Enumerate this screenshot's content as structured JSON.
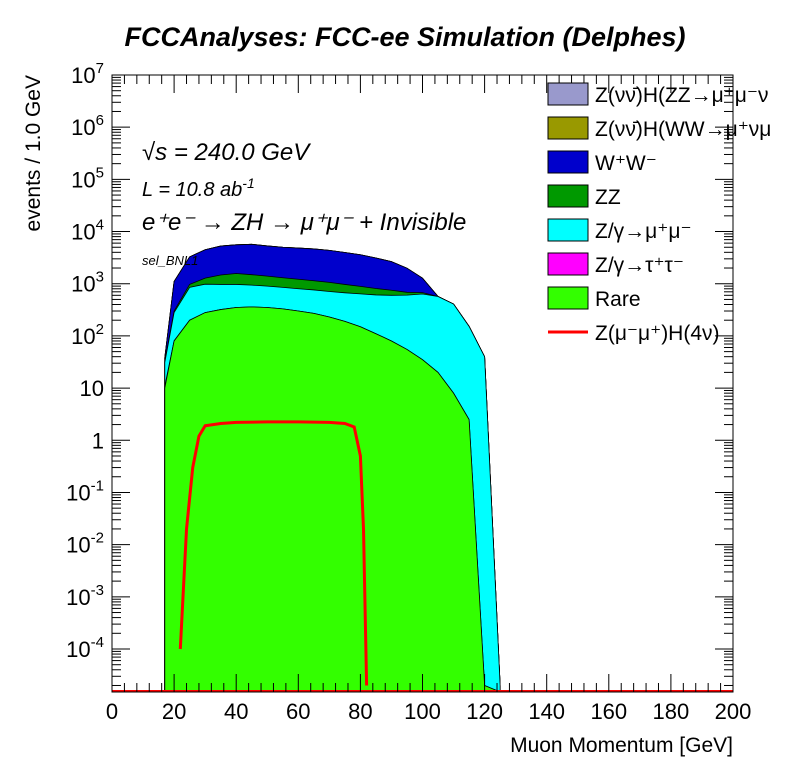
{
  "chart_data": {
    "type": "area",
    "title": "FCCAnalyses: FCC-ee Simulation (Delphes)",
    "xlabel": "Muon Momentum [GeV]",
    "ylabel": "events / 1.0 GeV",
    "xlim": [
      0,
      200
    ],
    "ylim": [
      1.5e-05,
      10000000.0
    ],
    "yscale": "log",
    "x_ticks": [
      "0",
      "20",
      "40",
      "60",
      "80",
      "100",
      "120",
      "140",
      "160",
      "180",
      "200"
    ],
    "grid": false,
    "legend_position": "top-right",
    "annotations": {
      "sqrt_s": "√s = 240.0 GeV",
      "lumi": "L = 10.8 ab",
      "lumi_exp": "-1",
      "process": "e⁺e⁻ → ZH → μ⁺μ⁻ + Invisible",
      "selection": "sel_BNL1"
    },
    "x": [
      17,
      20,
      25,
      30,
      35,
      40,
      45,
      50,
      55,
      60,
      65,
      70,
      75,
      80,
      85,
      90,
      95,
      100,
      105,
      110,
      115,
      120,
      125
    ],
    "stack_order": "bottom-to-top",
    "series": [
      {
        "name": "Rare",
        "color": "#33ff00",
        "values": [
          10,
          80,
          200,
          280,
          320,
          350,
          360,
          350,
          330,
          300,
          270,
          230,
          190,
          150,
          110,
          80,
          55,
          35,
          20,
          8,
          2.5,
          2e-05,
          0
        ]
      },
      {
        "name": "Z/γ→τ⁺τ⁻",
        "color": "#ff00ff",
        "values": [
          1,
          0.5,
          0.2,
          0.1,
          0.05,
          0.02,
          0.01,
          0.005,
          0.002,
          0.001,
          0.0005,
          0.0002,
          0.0001,
          0,
          0,
          0,
          0,
          0,
          0,
          0,
          0,
          0,
          0
        ]
      },
      {
        "name": "Z/γ→μ⁺μ⁻",
        "color": "#00ffff",
        "values": [
          20,
          200,
          650,
          700,
          650,
          620,
          580,
          550,
          520,
          500,
          490,
          480,
          480,
          490,
          500,
          520,
          550,
          600,
          550,
          400,
          150,
          40,
          2e-05
        ]
      },
      {
        "name": "ZZ",
        "color": "#009900",
        "values": [
          2,
          20,
          120,
          300,
          500,
          600,
          550,
          500,
          450,
          420,
          380,
          350,
          300,
          250,
          200,
          150,
          80,
          40,
          0,
          0,
          0,
          0,
          0
        ]
      },
      {
        "name": "W⁺W⁻",
        "color": "#0000cc",
        "values": [
          5,
          800,
          2300,
          3200,
          3800,
          4000,
          4200,
          3900,
          3700,
          3600,
          3500,
          3300,
          3000,
          2700,
          2300,
          1900,
          1300,
          600,
          0,
          0,
          0,
          0,
          0
        ]
      },
      {
        "name": "Z(νν̄)H(WW→μ⁺νμ⁻ν̄)",
        "color": "#999900",
        "values": [
          0,
          0,
          0.002,
          0.01,
          0.02,
          0.025,
          0.03,
          0.028,
          0.025,
          0.02,
          0.015,
          0.01,
          0.005,
          0.002,
          0,
          0,
          0,
          0,
          0,
          0,
          0,
          0,
          0
        ]
      },
      {
        "name": "Z(νν̄)H(ZZ→μ⁺μ⁻νν̄)",
        "color": "#9999cc",
        "values": [
          0,
          0,
          0.05,
          0.5,
          1.1,
          1.3,
          1.35,
          1.3,
          1.2,
          1.0,
          0.8,
          0.5,
          0.3,
          0.1,
          0.02,
          0.005,
          0.001,
          0.0002,
          0,
          0,
          0,
          0,
          0
        ]
      }
    ],
    "overlay": {
      "name": "Z(μ⁻μ⁺)H(4ν)",
      "color": "#ff0000",
      "x": [
        22,
        24,
        26,
        28,
        30,
        35,
        40,
        50,
        60,
        70,
        75,
        78,
        80,
        81,
        82
      ],
      "values": [
        0.0001,
        0.02,
        0.3,
        1.2,
        1.9,
        2.1,
        2.2,
        2.25,
        2.25,
        2.2,
        2.1,
        1.8,
        0.5,
        0.02,
        2e-05
      ]
    },
    "legend": [
      {
        "label": "Z(νν̄)H(ZZ→μ⁺μ⁻ν",
        "color": "#9999cc",
        "kind": "fill"
      },
      {
        "label": "Z(νν̄)H(WW→μ⁺νμ",
        "color": "#999900",
        "kind": "fill"
      },
      {
        "label": "W⁺W⁻",
        "color": "#0000cc",
        "kind": "fill"
      },
      {
        "label": "ZZ",
        "color": "#009900",
        "kind": "fill"
      },
      {
        "label": "Z/γ→μ⁺μ⁻",
        "color": "#00ffff",
        "kind": "fill"
      },
      {
        "label": "Z/γ→τ⁺τ⁻",
        "color": "#ff00ff",
        "kind": "fill"
      },
      {
        "label": "Rare",
        "color": "#33ff00",
        "kind": "fill"
      },
      {
        "label": "Z(μ⁻μ⁺)H(4ν)",
        "color": "#ff0000",
        "kind": "line"
      }
    ]
  }
}
